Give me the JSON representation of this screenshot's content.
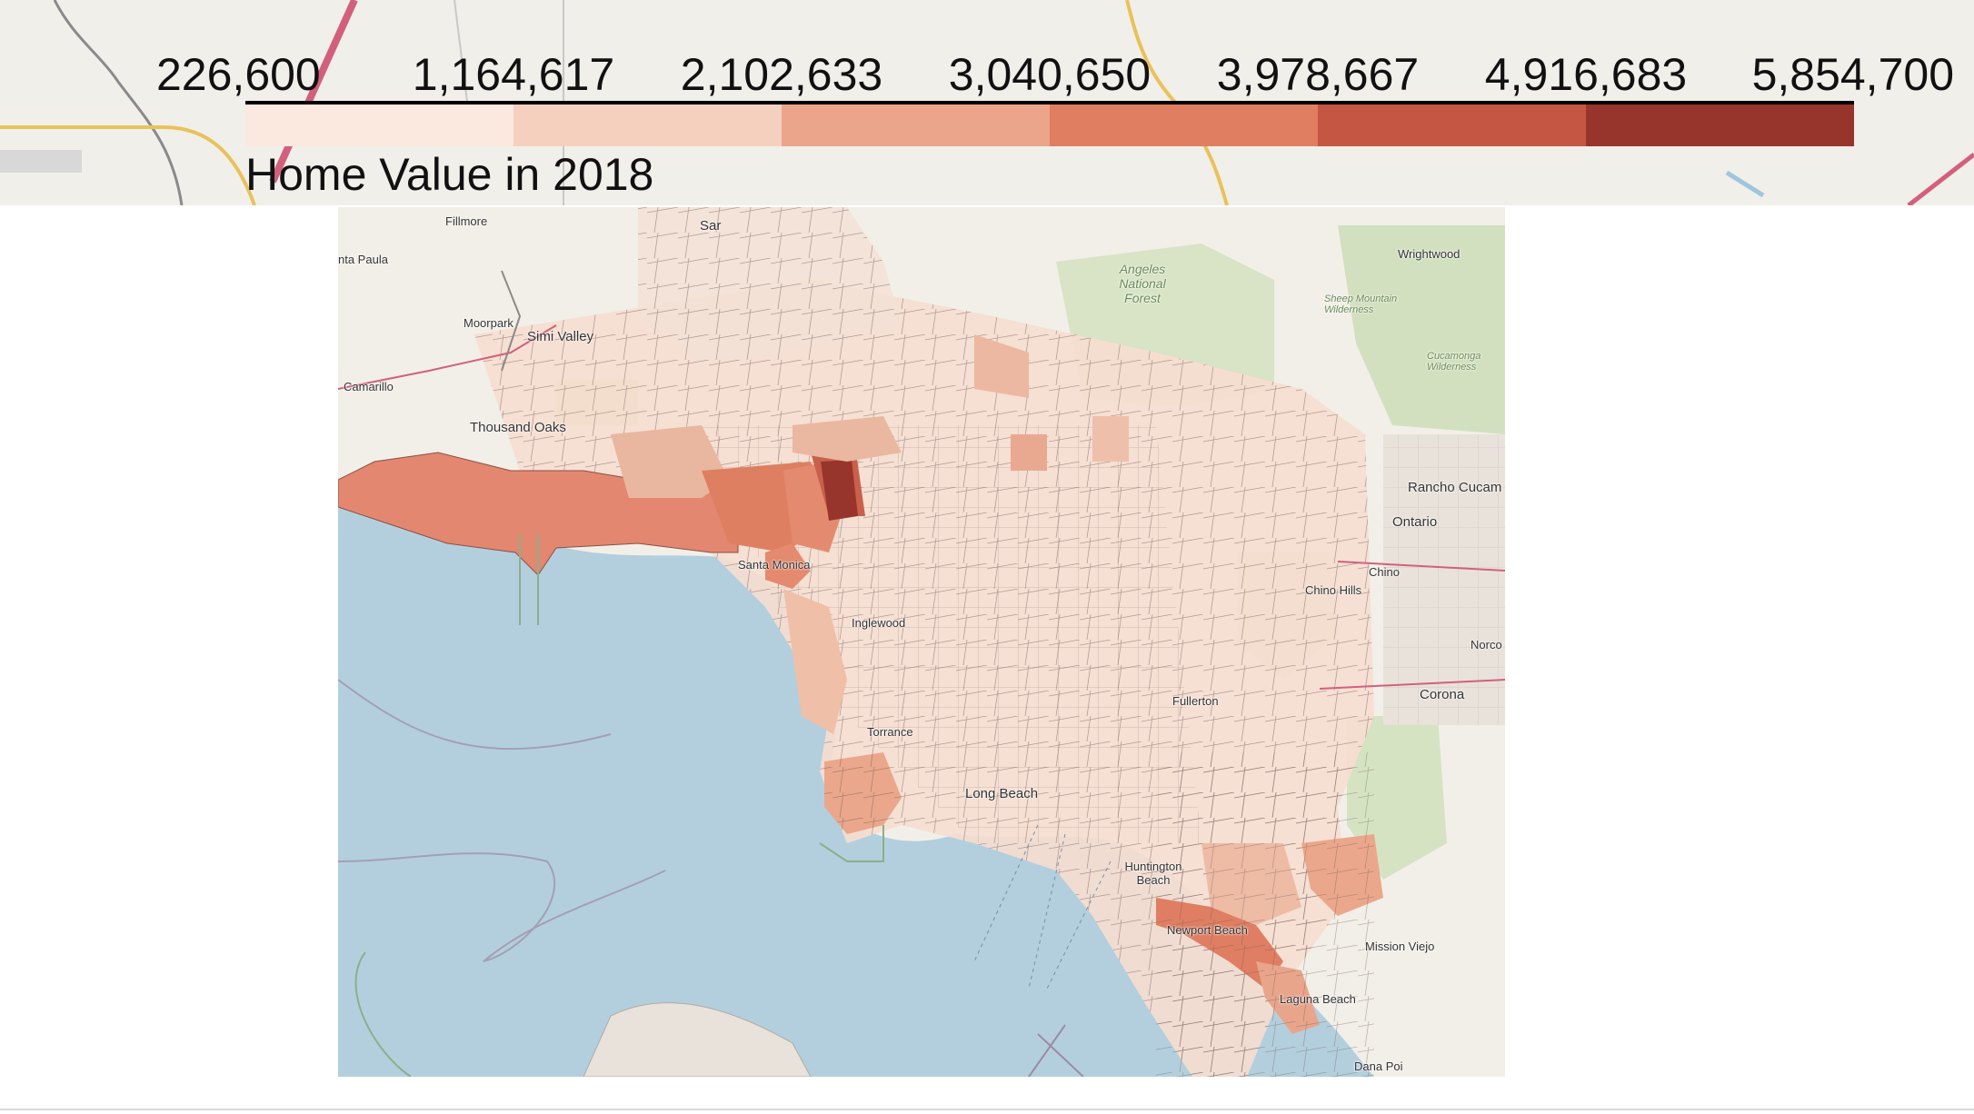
{
  "legend": {
    "ticks": [
      "226,600",
      "1,164,617",
      "2,102,633",
      "3,040,650",
      "3,978,667",
      "4,916,683",
      "5,854,700"
    ],
    "caption": "Home Value in 2018",
    "colors": [
      "#fbe9e0",
      "#f5d0bf",
      "#eba58a",
      "#e07e62",
      "#c55643",
      "#97352c"
    ]
  },
  "map": {
    "labels": [
      {
        "id": "fillmore",
        "text": "Fillmore"
      },
      {
        "id": "santa-paula",
        "text": "nta Paula"
      },
      {
        "id": "santa-clarita",
        "text": "Sar"
      },
      {
        "id": "moorpark",
        "text": "Moorpark"
      },
      {
        "id": "simi-valley",
        "text": "Simi Valley"
      },
      {
        "id": "camarillo",
        "text": "Camarillo"
      },
      {
        "id": "thousand-oaks",
        "text": "Thousand Oaks"
      },
      {
        "id": "angeles-forest",
        "text": "Angeles National Forest"
      },
      {
        "id": "wrightwood",
        "text": "Wrightwood"
      },
      {
        "id": "sheep-mountain",
        "text": "Sheep Mountain Wilderness"
      },
      {
        "id": "cucamonga",
        "text": "Cucamonga Wilderness"
      },
      {
        "id": "rancho-cucamonga",
        "text": "Rancho Cucam"
      },
      {
        "id": "ontario",
        "text": "Ontario"
      },
      {
        "id": "chino-hills",
        "text": "Chino Hills"
      },
      {
        "id": "chino",
        "text": "Chino"
      },
      {
        "id": "norco",
        "text": "Norco"
      },
      {
        "id": "corona",
        "text": "Corona"
      },
      {
        "id": "santa-monica",
        "text": "Santa Monica"
      },
      {
        "id": "inglewood",
        "text": "Inglewood"
      },
      {
        "id": "torrance",
        "text": "Torrance"
      },
      {
        "id": "long-beach",
        "text": "Long Beach"
      },
      {
        "id": "fullerton",
        "text": "Fullerton"
      },
      {
        "id": "huntington-beach",
        "text": "Huntington Beach"
      },
      {
        "id": "newport-beach",
        "text": "Newport Beach"
      },
      {
        "id": "laguna-beach",
        "text": "Laguna Beach"
      },
      {
        "id": "mission-viejo",
        "text": "Mission Viejo"
      },
      {
        "id": "dana-point",
        "text": "Dana Poi"
      }
    ]
  }
}
